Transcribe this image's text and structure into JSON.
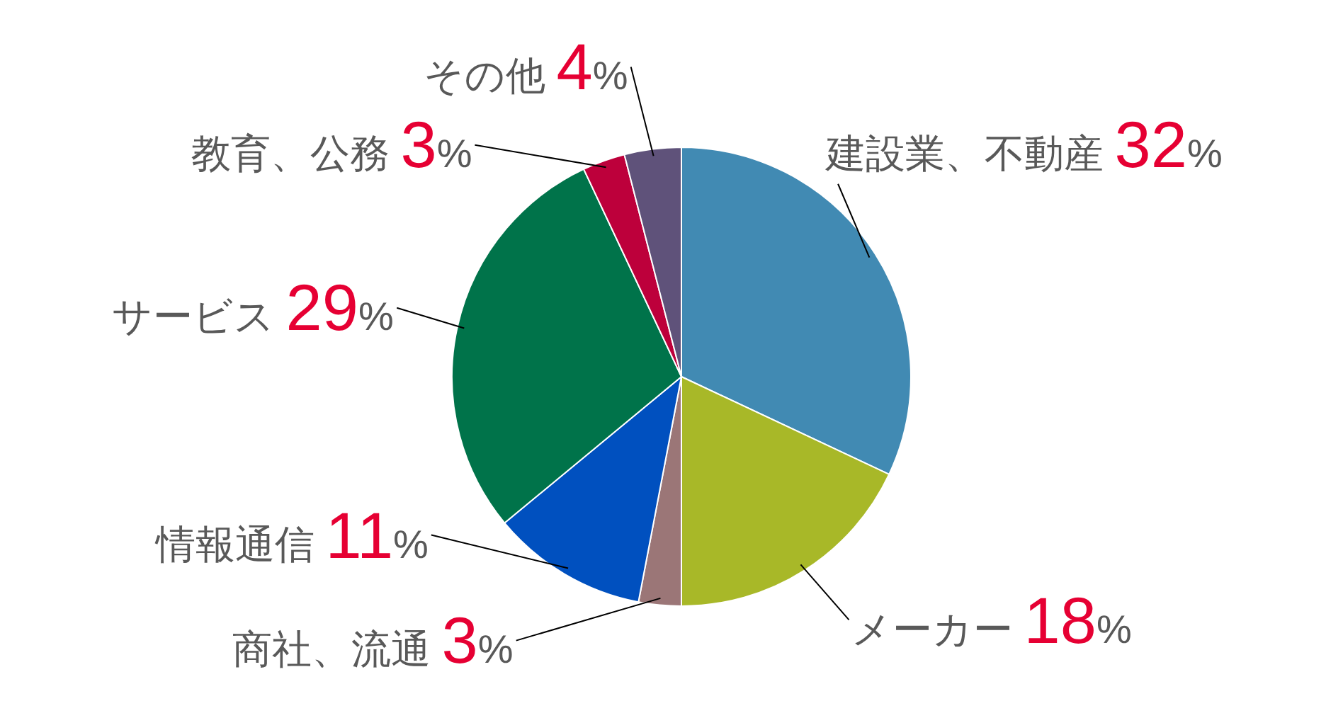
{
  "chart_data": {
    "type": "pie",
    "categories": [
      "建設業、不動産",
      "メーカー",
      "商社、流通",
      "情報通信",
      "サービス",
      "教育、公務",
      "その他"
    ],
    "values": [
      32,
      18,
      3,
      11,
      29,
      3,
      4
    ],
    "value_labels": [
      "32%",
      "18%",
      "3%",
      "11%",
      "29%",
      "3%",
      "4%"
    ],
    "colors": [
      "#418ab3",
      "#a8b828",
      "#9b7677",
      "#0050bf",
      "#00734a",
      "#bd003b",
      "#5f527a"
    ]
  }
}
